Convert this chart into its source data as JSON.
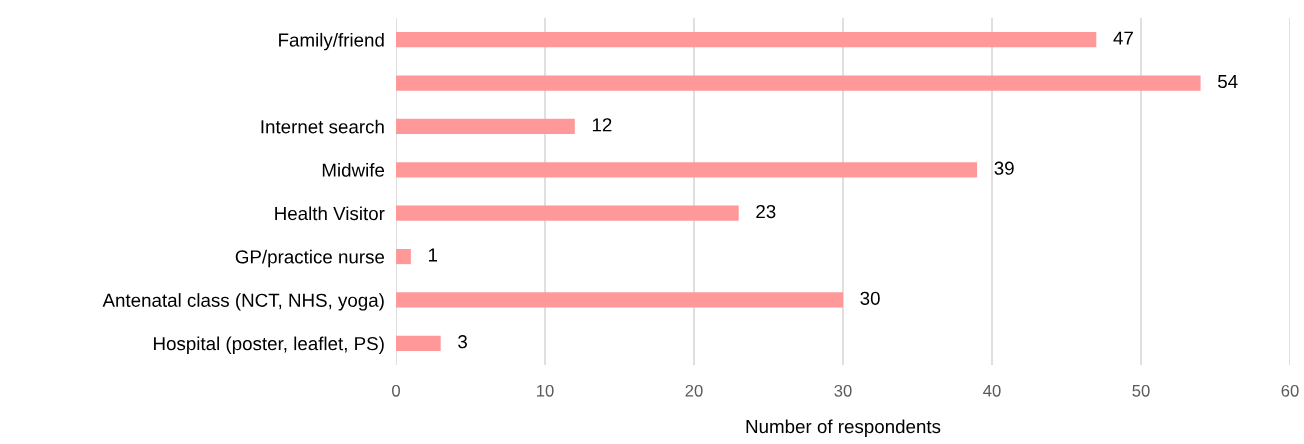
{
  "chart_data": {
    "type": "bar",
    "orientation": "horizontal",
    "xlabel": "Number of respondents",
    "categories": [
      "Family/friend",
      null,
      "Internet search",
      "Midwife",
      "Health Visitor",
      "GP/practice nurse",
      "Antenatal class (NCT, NHS, yoga)",
      "Hospital (poster, leaflet, PS)"
    ],
    "values": [
      47,
      54,
      12,
      39,
      23,
      1,
      30,
      3
    ],
    "color": "#ff9999",
    "xlim": [
      0,
      60
    ],
    "xticks": [
      0,
      10,
      20,
      30,
      40,
      50,
      60
    ],
    "grid": "x",
    "data_labels": true
  }
}
